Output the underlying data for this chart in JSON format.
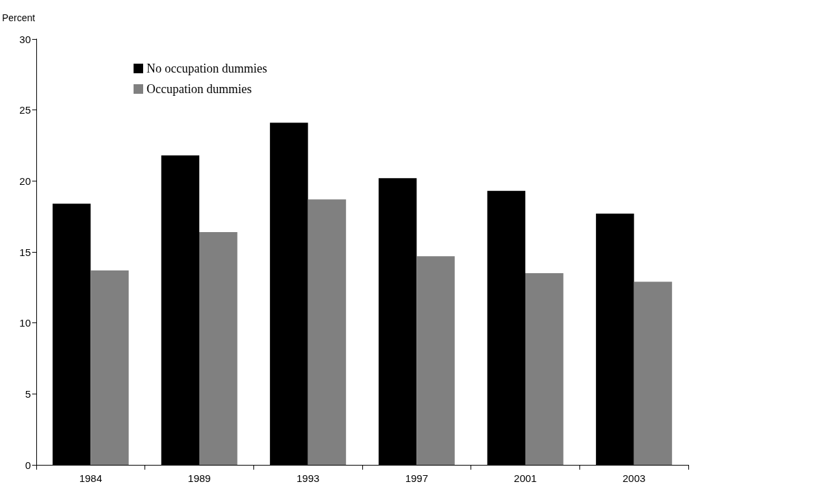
{
  "chart_data": {
    "type": "bar",
    "ylabel": "Percent",
    "categories": [
      "1984",
      "1989",
      "1993",
      "1997",
      "2001",
      "2003"
    ],
    "series": [
      {
        "name": "No occupation dummies",
        "color": "#000000",
        "values": [
          18.4,
          21.8,
          24.1,
          20.2,
          19.3,
          17.7
        ]
      },
      {
        "name": "Occupation dummies",
        "color": "#808080",
        "values": [
          13.7,
          16.4,
          18.7,
          14.7,
          13.5,
          12.9
        ]
      }
    ],
    "ylim": [
      0,
      30
    ],
    "yticks": [
      0,
      5,
      10,
      15,
      20,
      25,
      30
    ],
    "grid": false,
    "legend": "top left"
  }
}
